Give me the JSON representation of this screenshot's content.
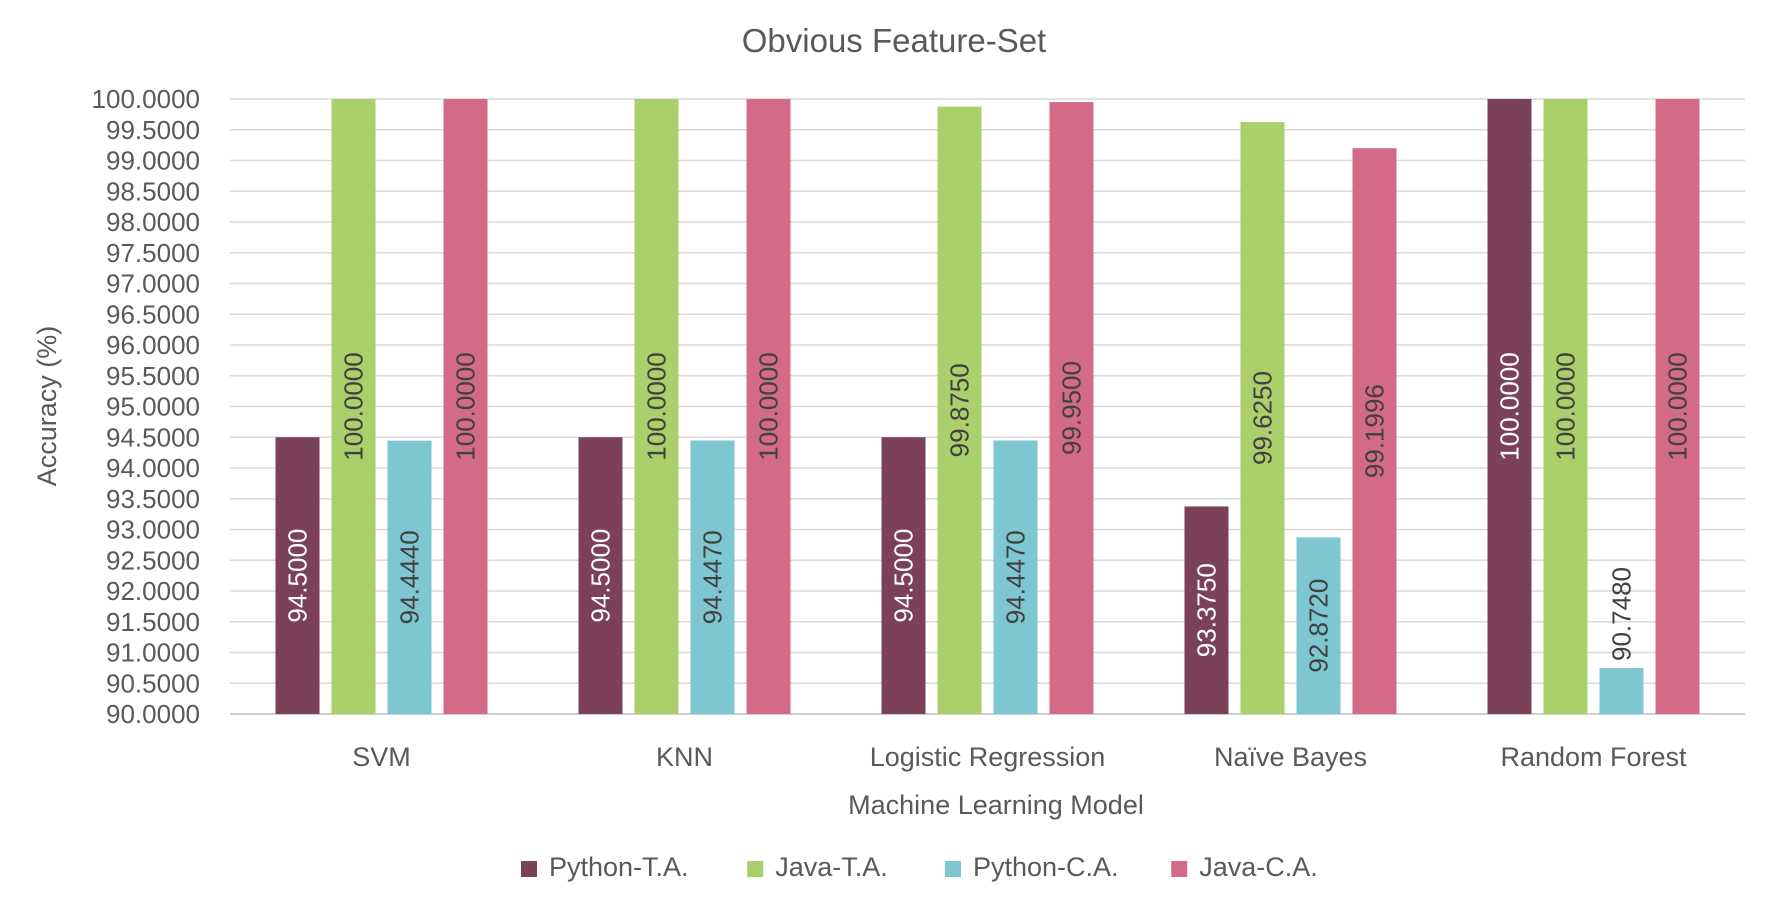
{
  "chart_data": {
    "type": "bar",
    "title": "Obvious Feature-Set",
    "xlabel": "Machine Learning Model",
    "ylabel": "Accuracy (%)",
    "ylim": [
      90,
      100
    ],
    "ytick_step": 0.5,
    "ytick_labels": [
      "90.0000",
      "90.5000",
      "91.0000",
      "91.5000",
      "92.0000",
      "92.5000",
      "93.0000",
      "93.5000",
      "94.0000",
      "94.5000",
      "95.0000",
      "95.5000",
      "96.0000",
      "96.5000",
      "97.0000",
      "97.5000",
      "98.0000",
      "98.5000",
      "99.0000",
      "99.5000",
      "100.0000"
    ],
    "categories": [
      "SVM",
      "KNN",
      "Logistic Regression",
      "Naïve Bayes",
      "Random Forest"
    ],
    "series": [
      {
        "name": "Python-T.A.",
        "color": "#7b4159",
        "values": [
          94.5,
          94.5,
          94.5,
          93.375,
          100.0
        ],
        "labels": [
          "94.5000",
          "94.5000",
          "94.5000",
          "93.3750",
          "100.0000"
        ]
      },
      {
        "name": "Java-T.A.",
        "color": "#a9d06b",
        "values": [
          100.0,
          100.0,
          99.875,
          99.625,
          100.0
        ],
        "labels": [
          "100.0000",
          "100.0000",
          "99.8750",
          "99.6250",
          "100.0000"
        ]
      },
      {
        "name": "Python-C.A.",
        "color": "#7ec6d0",
        "values": [
          94.444,
          94.447,
          94.447,
          92.872,
          90.748
        ],
        "labels": [
          "94.4440",
          "94.4470",
          "94.4470",
          "92.8720",
          "90.7480"
        ]
      },
      {
        "name": "Java-C.A.",
        "color": "#d36b88",
        "values": [
          100.0,
          100.0,
          99.95,
          99.1996,
          100.0
        ],
        "labels": [
          "100.0000",
          "100.0000",
          "99.9500",
          "99.1996",
          "100.0000"
        ]
      }
    ],
    "grid": true,
    "legend_position": "bottom"
  }
}
